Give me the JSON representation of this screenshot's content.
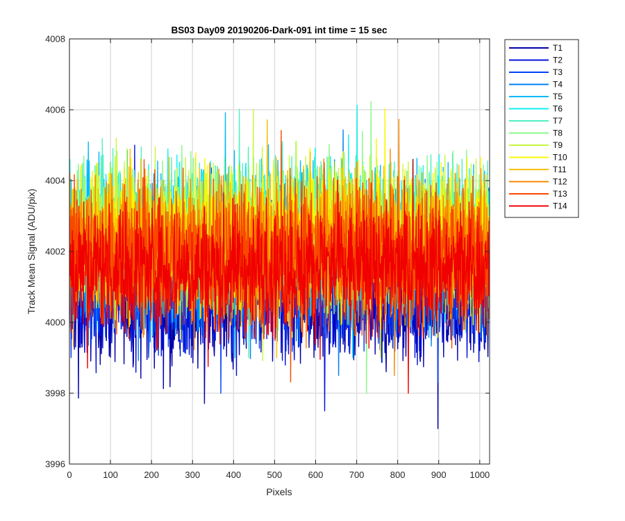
{
  "chart_data": {
    "type": "line",
    "title": "BS03 Day09 20190206-Dark-091 int time = 15 sec",
    "xlabel": "Pixels",
    "ylabel": "Track Mean Signal (ADU/pix)",
    "xlim": [
      0,
      1024
    ],
    "ylim": [
      3996,
      4008
    ],
    "xticks": [
      0,
      100,
      200,
      300,
      400,
      500,
      600,
      700,
      800,
      900,
      1000
    ],
    "yticks": [
      3996,
      3998,
      4000,
      4002,
      4004,
      4006,
      4008
    ],
    "grid": true,
    "legend_position": "outside-top-right",
    "series": [
      {
        "name": "T1",
        "color": "#0000a8",
        "mean": 4000.6,
        "spread": 0.85,
        "min": 3997.0,
        "max": 4004.5
      },
      {
        "name": "T2",
        "color": "#0010d8",
        "mean": 4000.9,
        "spread": 0.85,
        "min": 3997.5,
        "max": 4005.0
      },
      {
        "name": "T3",
        "color": "#0040f8",
        "mean": 4001.1,
        "spread": 0.85,
        "min": 3998.0,
        "max": 4005.2
      },
      {
        "name": "T4",
        "color": "#0080f8",
        "mean": 4001.8,
        "spread": 1.0,
        "min": 3998.5,
        "max": 4006.8
      },
      {
        "name": "T5",
        "color": "#00b8f8",
        "mean": 4002.4,
        "spread": 1.0,
        "min": 3999.0,
        "max": 4006.8
      },
      {
        "name": "T6",
        "color": "#10f0f0",
        "mean": 4002.5,
        "spread": 1.0,
        "min": 3999.0,
        "max": 4006.5
      },
      {
        "name": "T7",
        "color": "#50f0c0",
        "mean": 4002.5,
        "spread": 1.0,
        "min": 3999.0,
        "max": 4006.5
      },
      {
        "name": "T8",
        "color": "#88f888",
        "mean": 4002.6,
        "spread": 1.0,
        "min": 3998.0,
        "max": 4006.5
      },
      {
        "name": "T9",
        "color": "#c8f840",
        "mean": 4002.5,
        "spread": 1.0,
        "min": 3997.6,
        "max": 4006.3
      },
      {
        "name": "T10",
        "color": "#f8f800",
        "mean": 4002.4,
        "spread": 1.0,
        "min": 3999.0,
        "max": 4007.2
      },
      {
        "name": "T11",
        "color": "#f8c000",
        "mean": 4002.2,
        "spread": 1.0,
        "min": 3999.0,
        "max": 4006.3
      },
      {
        "name": "T12",
        "color": "#f88800",
        "mean": 4002.1,
        "spread": 1.0,
        "min": 3998.5,
        "max": 4006.5
      },
      {
        "name": "T13",
        "color": "#f84800",
        "mean": 4001.9,
        "spread": 1.0,
        "min": 3998.3,
        "max": 4006.0
      },
      {
        "name": "T14",
        "color": "#f00000",
        "mean": 4001.5,
        "spread": 0.9,
        "min": 3998.0,
        "max": 4004.6
      }
    ]
  }
}
